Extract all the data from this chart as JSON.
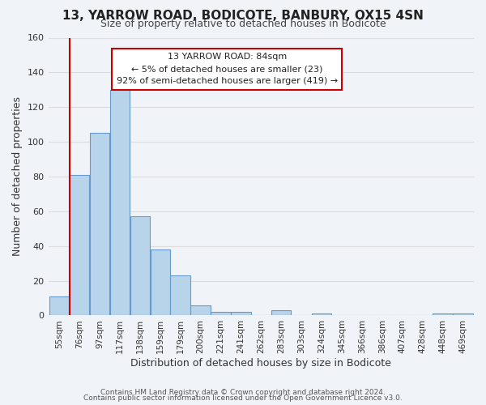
{
  "title": "13, YARROW ROAD, BODICOTE, BANBURY, OX15 4SN",
  "subtitle": "Size of property relative to detached houses in Bodicote",
  "xlabel": "Distribution of detached houses by size in Bodicote",
  "ylabel": "Number of detached properties",
  "bar_color": "#b8d4ea",
  "bar_edge_color": "#6699cc",
  "vline_color": "#cc0000",
  "vline_x": 0.51,
  "bins": [
    "55sqm",
    "76sqm",
    "97sqm",
    "117sqm",
    "138sqm",
    "159sqm",
    "179sqm",
    "200sqm",
    "221sqm",
    "241sqm",
    "262sqm",
    "283sqm",
    "303sqm",
    "324sqm",
    "345sqm",
    "366sqm",
    "386sqm",
    "407sqm",
    "428sqm",
    "448sqm",
    "469sqm"
  ],
  "values": [
    11,
    81,
    105,
    130,
    57,
    38,
    23,
    6,
    2,
    2,
    0,
    3,
    0,
    1,
    0,
    0,
    0,
    0,
    0,
    1,
    1
  ],
  "ylim": [
    0,
    160
  ],
  "yticks": [
    0,
    20,
    40,
    60,
    80,
    100,
    120,
    140,
    160
  ],
  "annotation_line1": "13 YARROW ROAD: 84sqm",
  "annotation_line2": "← 5% of detached houses are smaller (23)",
  "annotation_line3": "92% of semi-detached houses are larger (419) →",
  "footer1": "Contains HM Land Registry data © Crown copyright and database right 2024.",
  "footer2": "Contains public sector information licensed under the Open Government Licence v3.0.",
  "grid_color": "#dddddd",
  "background_color": "#f0f4f8"
}
